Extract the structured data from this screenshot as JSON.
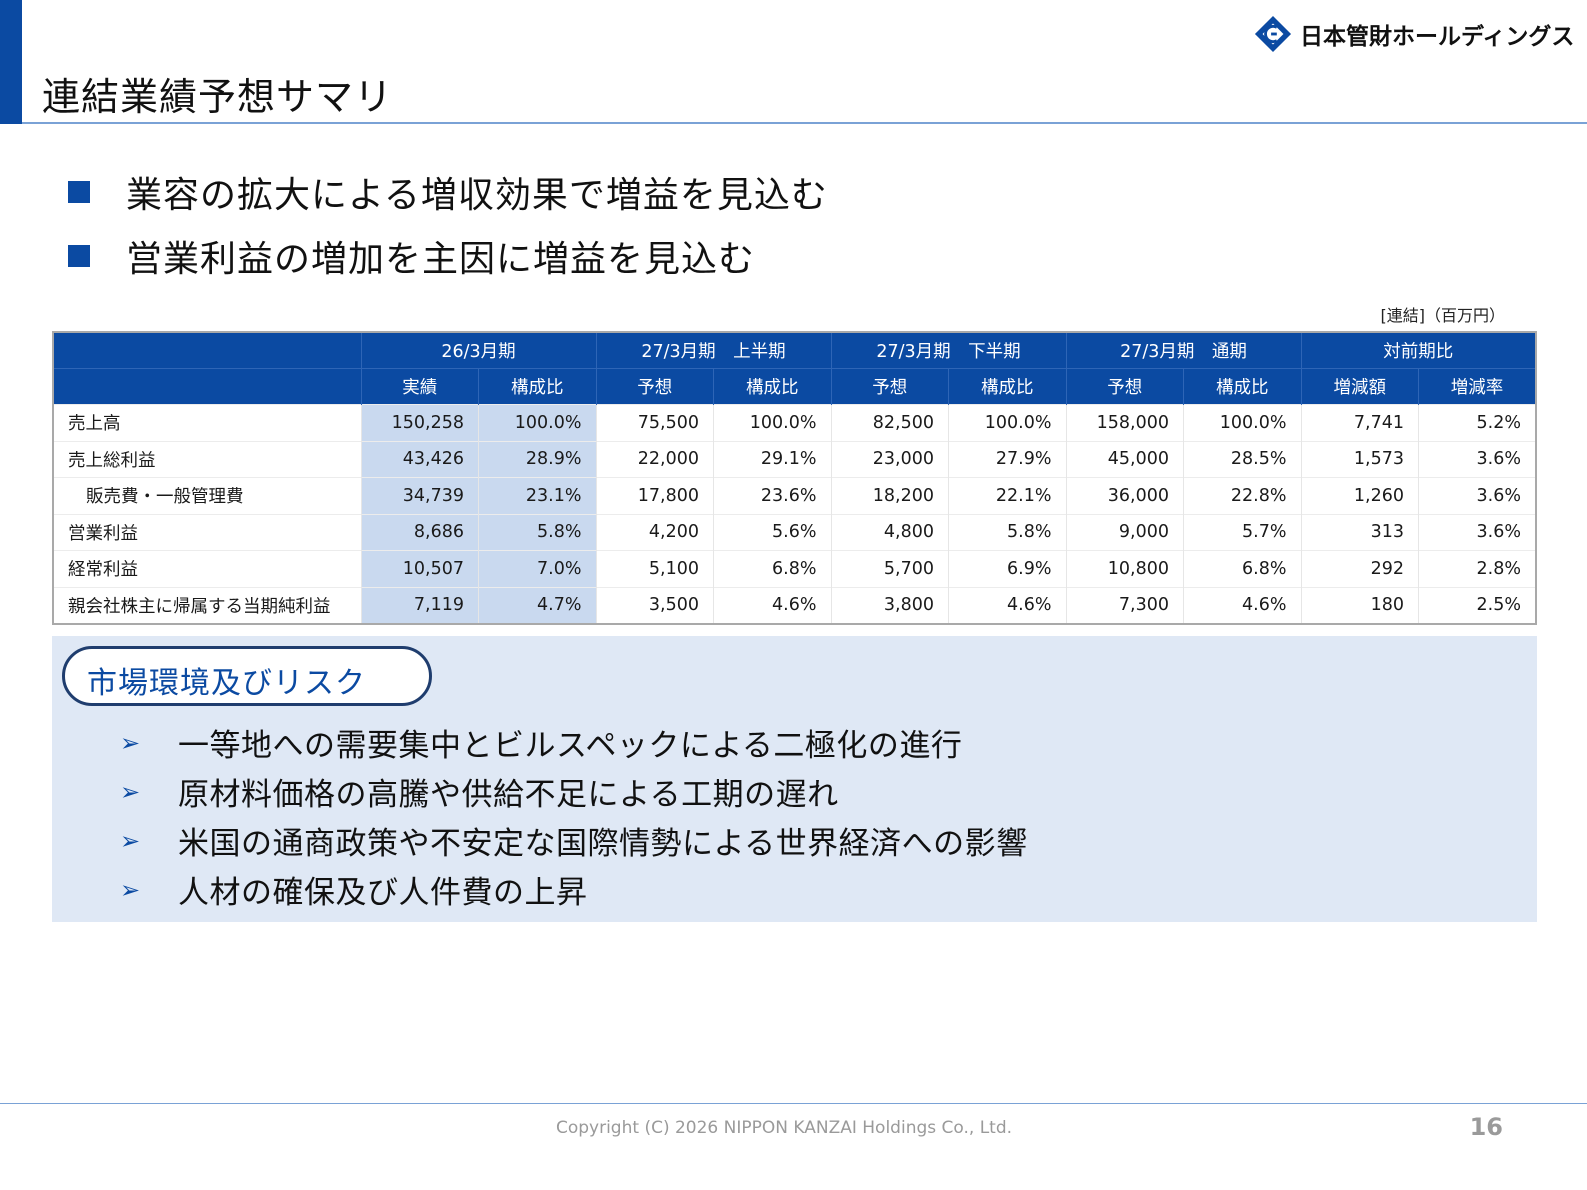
{
  "header": {
    "title": "連結業績予想サマリ",
    "logo_text": "日本管財ホールディングス",
    "logo_icon": "nippon-kanzai-logo-icon",
    "brand_color": "#0b4aa2"
  },
  "bullets": [
    "業容の拡大による増収効果で増益を見込む",
    "営業利益の増加を主因に増益を見込む"
  ],
  "table": {
    "unit_note": "[連結]（百万円）",
    "group_headers": [
      "26/3月期",
      "27/3月期　上半期",
      "27/3月期　下半期",
      "27/3月期　通期",
      "対前期比"
    ],
    "sub_headers": [
      "実績",
      "構成比",
      "予想",
      "構成比",
      "予想",
      "構成比",
      "予想",
      "構成比",
      "増減額",
      "増減率"
    ],
    "rows": [
      {
        "label": "売上高",
        "values": [
          "150,258",
          "100.0%",
          "75,500",
          "100.0%",
          "82,500",
          "100.0%",
          "158,000",
          "100.0%",
          "7,741",
          "5.2%"
        ]
      },
      {
        "label": "売上総利益",
        "values": [
          "43,426",
          "28.9%",
          "22,000",
          "29.1%",
          "23,000",
          "27.9%",
          "45,000",
          "28.5%",
          "1,573",
          "3.6%"
        ]
      },
      {
        "label": "販売費・一般管理費",
        "values": [
          "34,739",
          "23.1%",
          "17,800",
          "23.6%",
          "18,200",
          "22.1%",
          "36,000",
          "22.8%",
          "1,260",
          "3.6%"
        ]
      },
      {
        "label": "営業利益",
        "values": [
          "8,686",
          "5.8%",
          "4,200",
          "5.6%",
          "4,800",
          "5.8%",
          "9,000",
          "5.7%",
          "313",
          "3.6%"
        ]
      },
      {
        "label": "経常利益",
        "values": [
          "10,507",
          "7.0%",
          "5,100",
          "6.8%",
          "5,700",
          "6.9%",
          "10,800",
          "6.8%",
          "292",
          "2.8%"
        ]
      },
      {
        "label": "親会社株主に帰属する当期純利益",
        "values": [
          "7,119",
          "4.7%",
          "3,500",
          "4.6%",
          "3,800",
          "4.6%",
          "7,300",
          "4.6%",
          "180",
          "2.5%"
        ]
      }
    ]
  },
  "risk": {
    "heading": "市場環境及びリスク",
    "items": [
      "一等地への需要集中とビルスペックによる二極化の進行",
      "原材料価格の高騰や供給不足による工期の遅れ",
      "米国の通商政策や不安定な国際情勢による世界経済への影響",
      "人材の確保及び人件費の上昇"
    ],
    "arrow": "➢"
  },
  "footer": {
    "copyright": "Copyright (C) 2026 NIPPON KANZAI Holdings Co., Ltd.",
    "page_number": "16"
  }
}
